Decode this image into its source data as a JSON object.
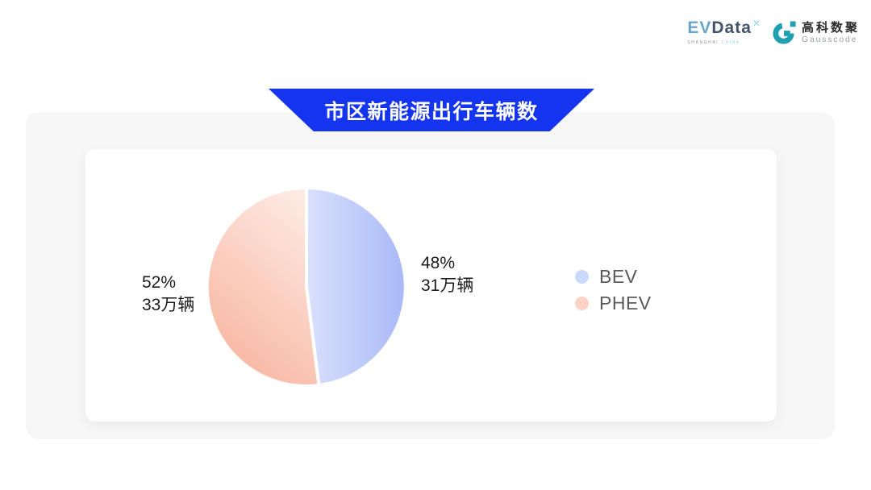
{
  "colors": {
    "banner_blue": "#1434ef",
    "gausscode_teal": "#1f9fb2",
    "evdata_blue": "#68a5cc",
    "evdata_dark": "#42526b",
    "evdata_x": "#8fd6ef"
  },
  "header": {
    "evdata_logo": {
      "ev": "EV",
      "data": "Data",
      "superscript": "✕",
      "subtext_left": "SHANGHAI",
      "subtext_right": "CHINA"
    },
    "gausscode_logo": {
      "cn": "高科数聚",
      "en": "Gausscode"
    }
  },
  "banner": {
    "title": "市区新能源出行车辆数"
  },
  "chart_data": {
    "type": "pie",
    "title": "市区新能源出行车辆数",
    "unit": "万辆",
    "legend_position": "right",
    "start_angle_deg": 90,
    "direction": "clockwise",
    "series": [
      {
        "name": "BEV",
        "value": 31,
        "percent": 48,
        "label": "48%",
        "count_label": "31万辆",
        "legend_color": "#ccd8fb",
        "gradient": [
          "#dae0fd",
          "#a8b9f7"
        ],
        "gradient_dir": [
          "0%",
          "0%",
          "100%",
          "0%"
        ]
      },
      {
        "name": "PHEV",
        "value": 33,
        "percent": 52,
        "label": "52%",
        "count_label": "33万辆",
        "legend_color": "#fbd2c4",
        "gradient": [
          "#fdeae3",
          "#f8b49e"
        ],
        "gradient_dir": [
          "75%",
          "0%",
          "25%",
          "100%"
        ]
      }
    ]
  }
}
